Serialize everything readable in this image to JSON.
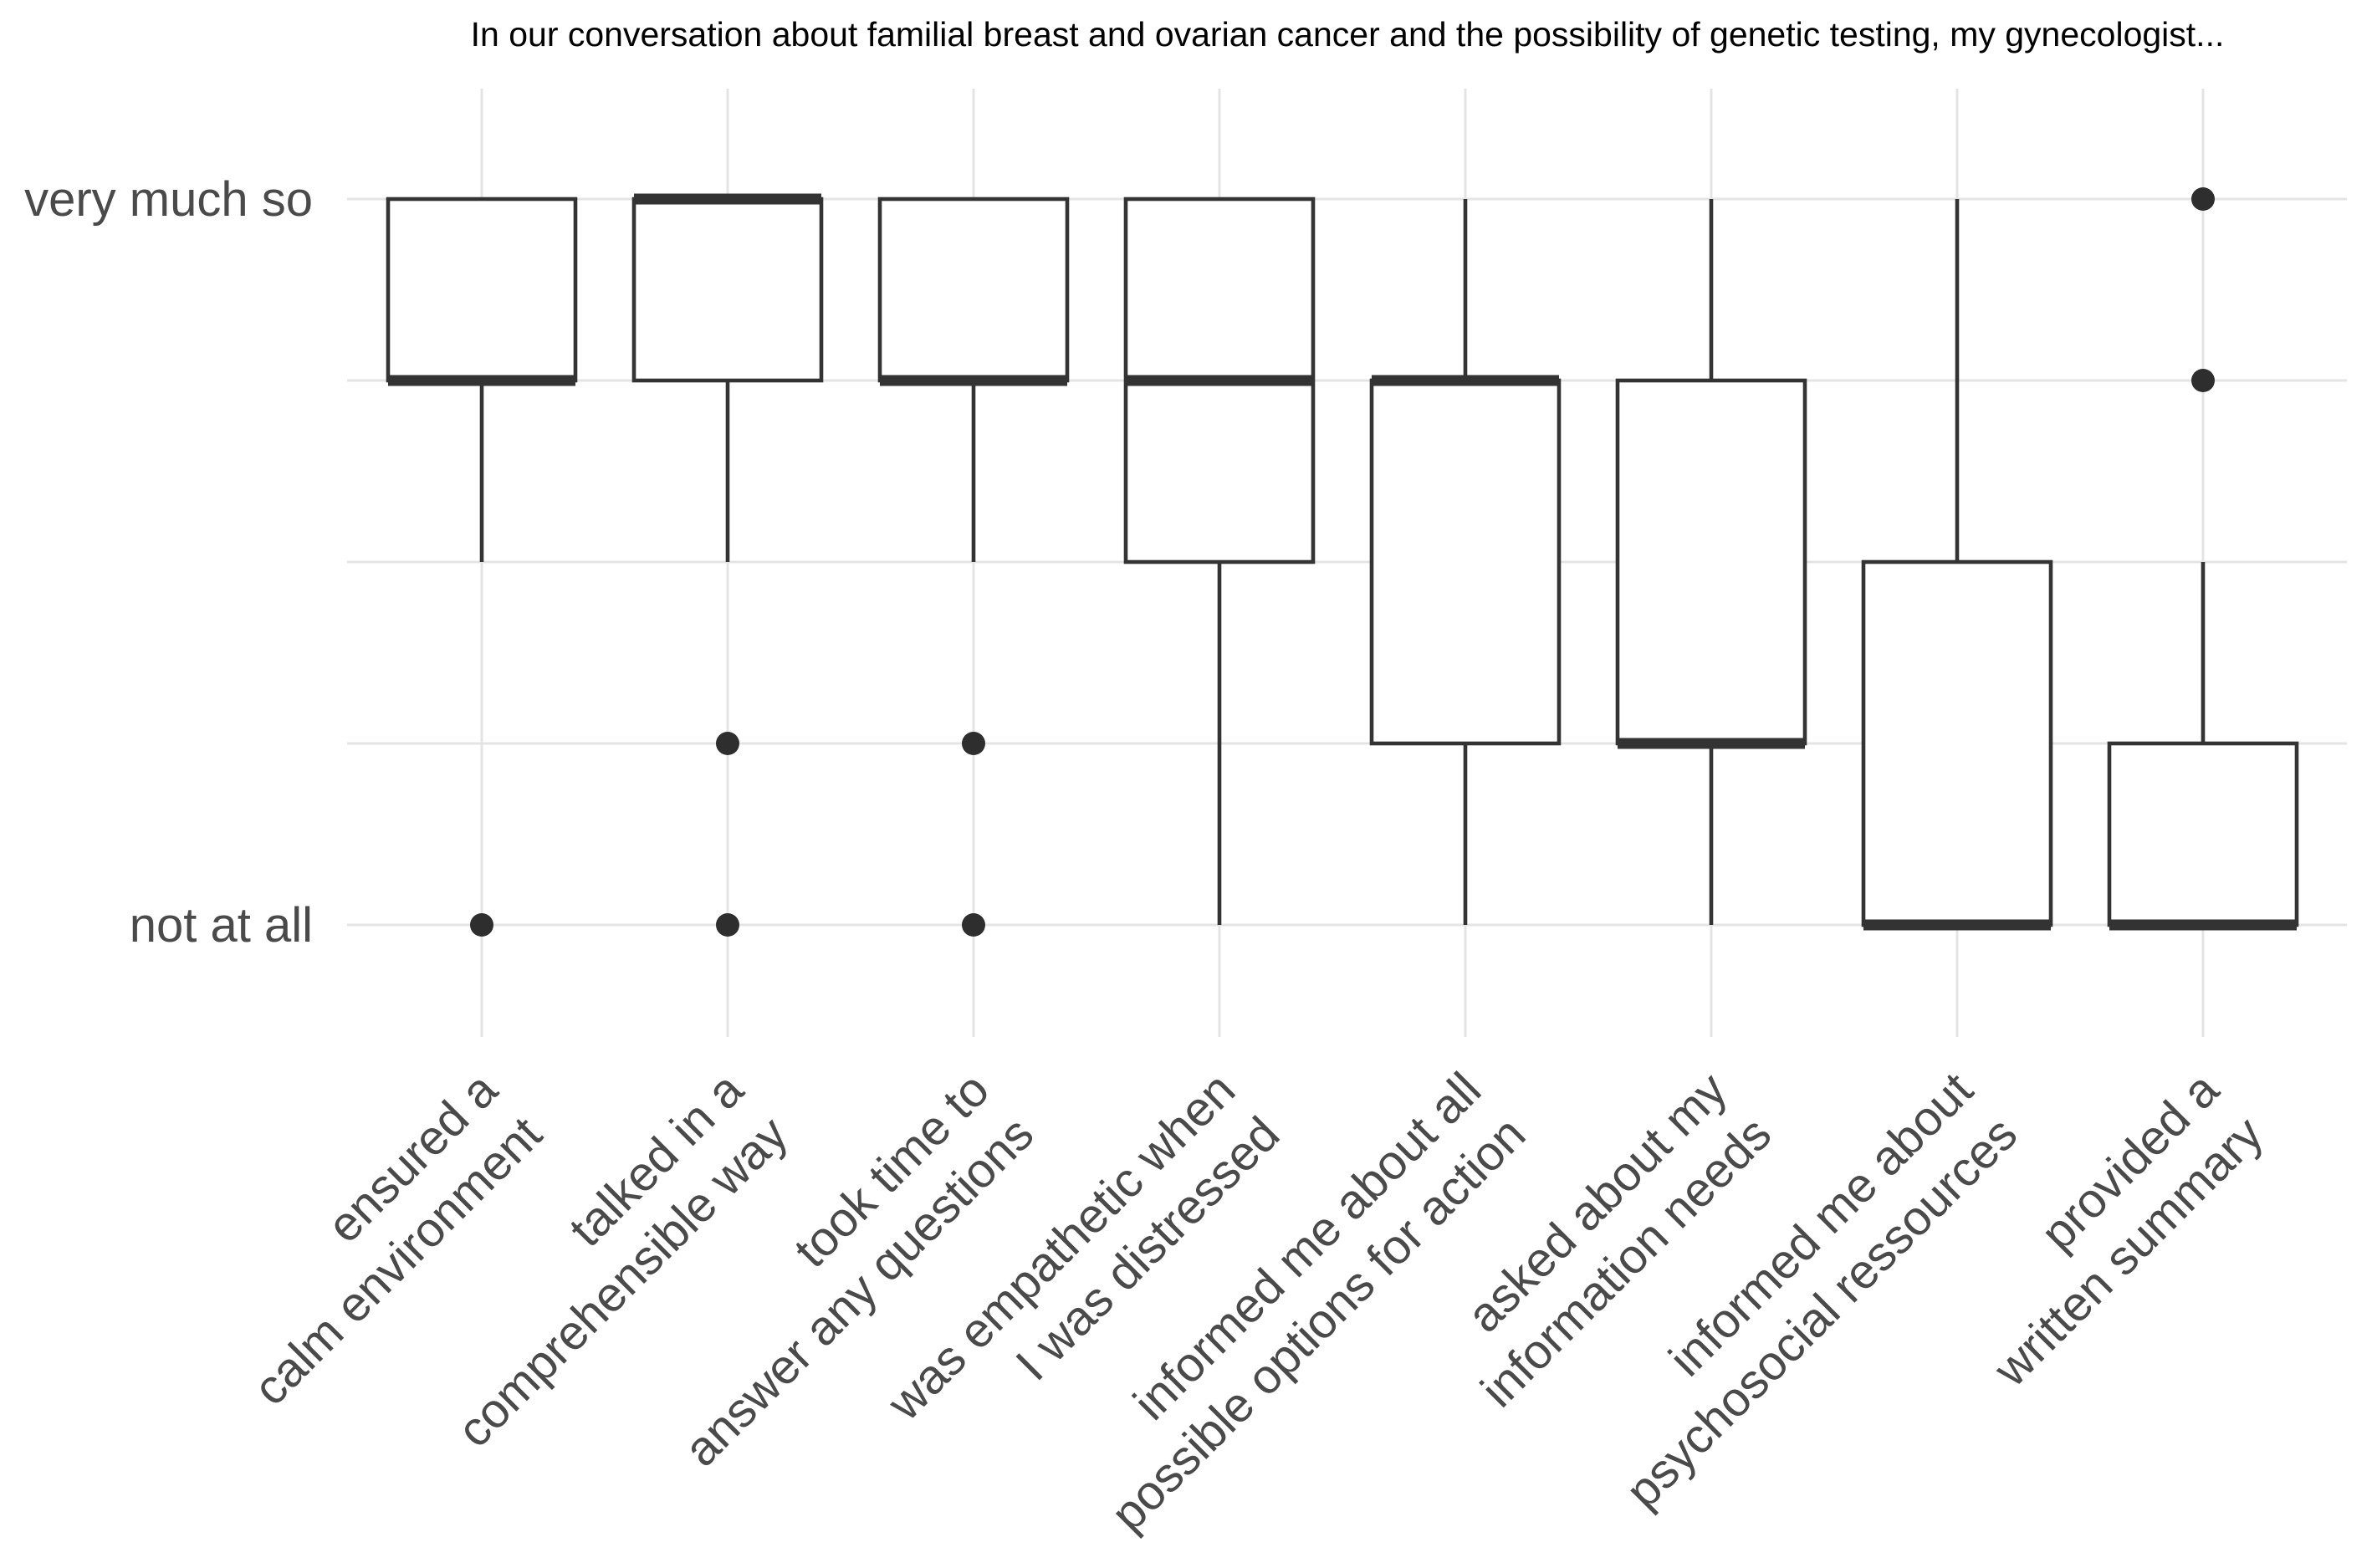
{
  "chart_data": {
    "type": "boxplot",
    "title": "In our conversation about familial breast and ovarian cancer and the possibility of genetic testing, my gynecologist...",
    "xlabel": "",
    "ylabel": "",
    "grid": "major",
    "legend_position": "none",
    "y_axis": {
      "scale": "likert",
      "min": 1,
      "max": 5,
      "gridlines_at": [
        5,
        4,
        3,
        2,
        1
      ],
      "ticks": [
        {
          "value": 5,
          "label": "very much so"
        },
        {
          "value": 1,
          "label": "not at all"
        }
      ]
    },
    "categories": [
      "ensured a calm environment",
      "talked in a comprehensible way",
      "took time to answer any questions",
      "was empathetic when I was distressed",
      "informed me about all possible options for action",
      "asked about my information needs",
      "informed me about psychosocial ressources",
      "provided a written summary"
    ],
    "boxes": [
      {
        "label_lines": [
          "ensured a",
          "calm environment"
        ],
        "q1": 4,
        "median": 4,
        "q3": 5,
        "whisker_low": 3,
        "whisker_high": 5,
        "outliers": [
          1
        ]
      },
      {
        "label_lines": [
          "talked in a",
          "comprehensible way"
        ],
        "q1": 4,
        "median": 5,
        "q3": 5,
        "whisker_low": 3,
        "whisker_high": 5,
        "outliers": [
          2,
          1
        ]
      },
      {
        "label_lines": [
          "took time to",
          "answer any questions"
        ],
        "q1": 4,
        "median": 4,
        "q3": 5,
        "whisker_low": 3,
        "whisker_high": 5,
        "outliers": [
          2,
          1
        ]
      },
      {
        "label_lines": [
          "was empathetic when",
          "I was distressed"
        ],
        "q1": 3,
        "median": 4,
        "q3": 5,
        "whisker_low": 1,
        "whisker_high": 5,
        "outliers": []
      },
      {
        "label_lines": [
          "informed me about all",
          "possible options for action"
        ],
        "q1": 2,
        "median": 4,
        "q3": 4,
        "whisker_low": 1,
        "whisker_high": 5,
        "outliers": []
      },
      {
        "label_lines": [
          "asked about my",
          "information needs"
        ],
        "q1": 2,
        "median": 2,
        "q3": 4,
        "whisker_low": 1,
        "whisker_high": 5,
        "outliers": []
      },
      {
        "label_lines": [
          "informed me about",
          "psychosocial ressources"
        ],
        "q1": 1,
        "median": 1,
        "q3": 3,
        "whisker_low": 1,
        "whisker_high": 5,
        "outliers": []
      },
      {
        "label_lines": [
          "provided a",
          "written summary"
        ],
        "q1": 1,
        "median": 1,
        "q3": 2,
        "whisker_low": 1,
        "whisker_high": 3,
        "outliers": [
          5,
          4
        ]
      }
    ],
    "style": {
      "box_stroke_color": "#333333",
      "box_fill_color": "#ffffff",
      "outlier_color": "#2e2e2e",
      "gridline_color": "#e4e4e4",
      "axis_text_color": "#4a4a4a",
      "title_color": "#000000",
      "background_color": "#ffffff"
    }
  }
}
